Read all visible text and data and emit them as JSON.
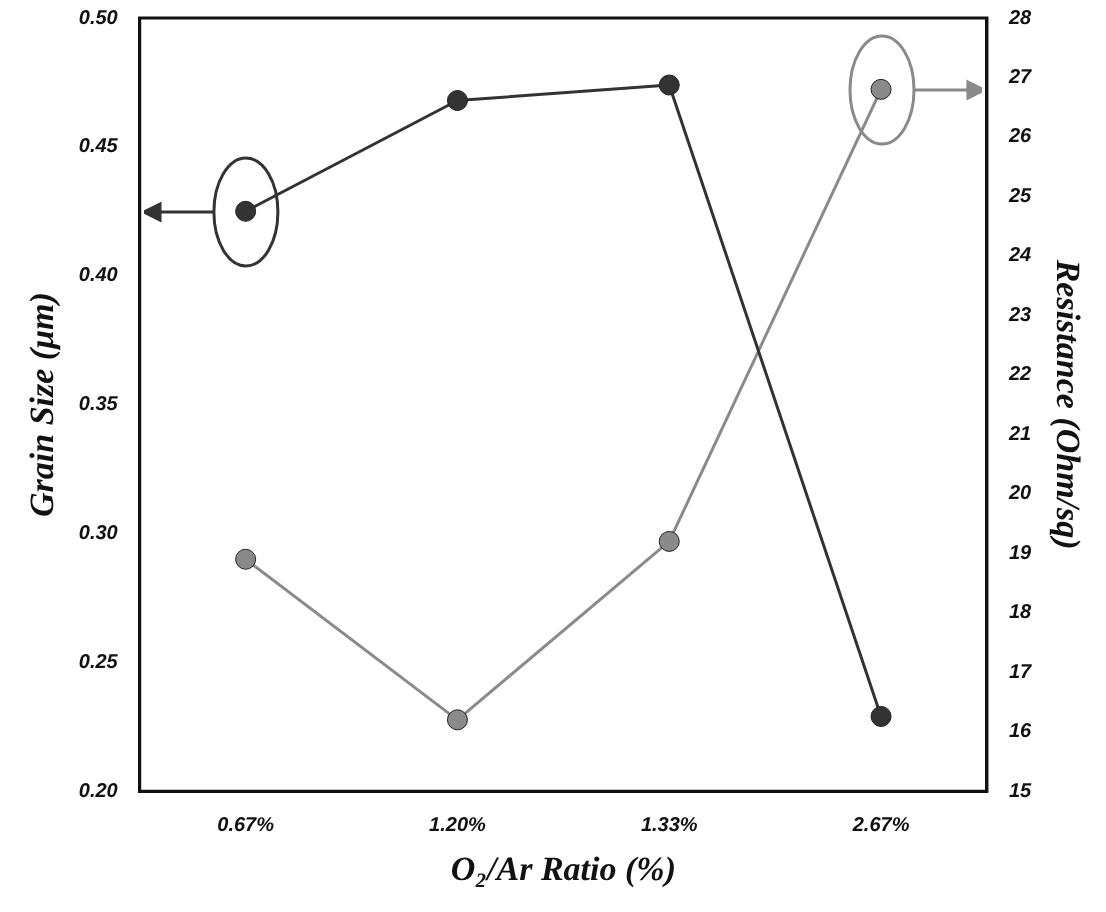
{
  "chart_data": {
    "type": "line",
    "xlabel": "O₂/Ar Ratio (%)",
    "ylabel": "Grain Size (μm)",
    "y2label": "Resistance (Ohm/sq)",
    "categories": [
      "0.67%",
      "1.20%",
      "1.33%",
      "2.67%"
    ],
    "series": [
      {
        "color": "#333333",
        "values": [
          0.425,
          0.468,
          0.474,
          0.229
        ]
      },
      {
        "color": "#8a8a8a",
        "values": [
          18.9,
          16.2,
          19.2,
          26.8
        ],
        "axis": "y2"
      }
    ],
    "ylim": [
      0.2,
      0.5
    ],
    "yticks": [
      {
        "value": 0.2,
        "label": "0.20"
      },
      {
        "value": 0.25,
        "label": "0.25"
      },
      {
        "value": 0.3,
        "label": "0.30"
      },
      {
        "value": 0.35,
        "label": "0.35"
      },
      {
        "value": 0.4,
        "label": "0.40"
      },
      {
        "value": 0.45,
        "label": "0.45"
      },
      {
        "value": 0.5,
        "label": "0.50"
      }
    ],
    "y2lim": [
      15,
      28
    ],
    "y2ticks": [
      15,
      16,
      17,
      18,
      19,
      20,
      21,
      22,
      23,
      24,
      25,
      26,
      27,
      28
    ],
    "grid": false,
    "legend": false,
    "marker": "circle",
    "line_style": "solid"
  }
}
